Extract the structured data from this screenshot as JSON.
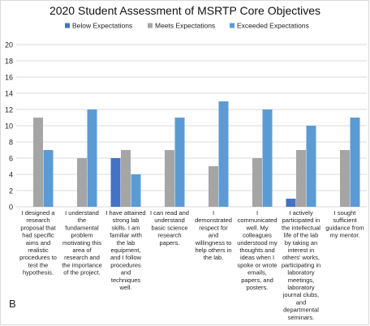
{
  "chart_data": {
    "type": "bar",
    "title": "2020 Student Assessment of MSRTP Core Objectives",
    "panel_label": "B",
    "xlabel": "",
    "ylabel": "",
    "ylim": [
      0,
      20
    ],
    "yticks": [
      "0",
      "2",
      "4",
      "6",
      "8",
      "10",
      "12",
      "14",
      "16",
      "18",
      "20"
    ],
    "grid": true,
    "legend_position": "top",
    "categories": [
      "I designed a research proposal that had specific aims and realistic procedures to test the hypothesis.",
      "I understand the fundamental problem motivating this area of research and the importance of the project.",
      "I have attained strong lab skills. I am familiar with the lab equipment, and I follow procedures and techniques well.",
      "I can read and understand basic science research papers.",
      "I demonstrated respect for and willingness to help others in the lab.",
      "I communicated well. My colleagues understood my thoughts and ideas when I spoke or wrote emails, papers, and posters.",
      "I actively participated in the intellectual life of the lab by taking an interest in others' works, participating in laboratory meetings, laboratory journal clubs, and departmental seminars.",
      "I sought sufficient guidance from my mentor."
    ],
    "category_lines": [
      [
        "I designed a",
        "research",
        "proposal that",
        "had specific",
        "aims and",
        "realistic",
        "procedures to",
        "test the",
        "hypothesis."
      ],
      [
        "I understand",
        "the",
        "fundamental",
        "problem",
        "motivating this",
        "area of",
        "research and",
        "the importance",
        "of the project."
      ],
      [
        "I have attained",
        "strong lab",
        "skills. I am",
        "familiar with",
        "the lab",
        "equipment,",
        "and I follow",
        "procedures",
        "and",
        "techniques",
        "well."
      ],
      [
        "I can read and",
        "understand",
        "basic science",
        "research",
        "papers."
      ],
      [
        "I",
        "demonstrated",
        "respect for",
        "and",
        "willingness to",
        "help others in",
        "the lab."
      ],
      [
        "I",
        "communicated",
        "well. My",
        "colleagues",
        "understood my",
        "thoughts and",
        "ideas when I",
        "spoke or wrote",
        "emails,",
        "papers, and",
        "posters."
      ],
      [
        "I actively",
        "participated in",
        "the intellectual",
        "life of the lab",
        "by taking an",
        "interest in",
        "others' works,",
        "participating in",
        "laboratory",
        "meetings,",
        "laboratory",
        "journal clubs,",
        "and",
        "departmental",
        "seminars."
      ],
      [
        "I sought",
        "sufficient",
        "guidance from",
        "my mentor."
      ]
    ],
    "series": [
      {
        "name": "Below Expectations",
        "color": "#4472c4",
        "values": [
          0,
          0,
          6,
          0,
          0,
          0,
          1,
          0
        ]
      },
      {
        "name": "Meets Expectations",
        "color": "#a5a5a5",
        "values": [
          11,
          6,
          7,
          7,
          5,
          6,
          7,
          7
        ]
      },
      {
        "name": "Exceeded Expectations",
        "color": "#5b9bd5",
        "values": [
          7,
          12,
          4,
          11,
          13,
          12,
          10,
          11
        ]
      }
    ],
    "colors": {
      "grid": "#d9d9d9",
      "text": "#222222",
      "title": "#111111"
    }
  }
}
